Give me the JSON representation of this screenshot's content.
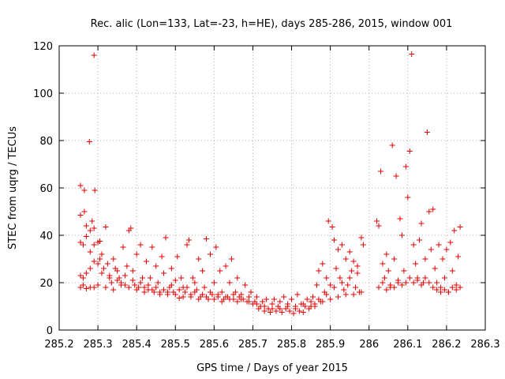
{
  "chart_data": {
    "type": "scatter",
    "title": "Rec. alic (Lon=133, Lat=-23, h=HE), days 285-286, 2015, window 001",
    "xlabel": "GPS time / Days of year 2015",
    "ylabel": "STEC from uqrg / TECUs",
    "xlim": [
      285.2,
      286.3
    ],
    "ylim": [
      0,
      120
    ],
    "xticks": [
      285.2,
      285.3,
      285.4,
      285.5,
      285.6,
      285.7,
      285.8,
      285.9,
      286.0,
      286.1,
      286.2,
      286.3
    ],
    "xtick_labels": [
      "285.2",
      "285.3",
      "285.4",
      "285.5",
      "285.6",
      "285.7",
      "285.8",
      "285.9",
      "286",
      "286.1",
      "286.2",
      "286.3"
    ],
    "yticks": [
      0,
      20,
      40,
      60,
      80,
      100,
      120
    ],
    "ytick_labels": [
      "0",
      "20",
      "40",
      "60",
      "80",
      "100",
      "120"
    ],
    "grid": true,
    "marker": "+",
    "color": "#e00000",
    "series": [
      {
        "name": "",
        "points": [
          [
            285.255,
            61
          ],
          [
            285.265,
            59
          ],
          [
            285.278,
            79.5
          ],
          [
            285.29,
            116
          ],
          [
            285.292,
            59
          ],
          [
            285.255,
            48.5
          ],
          [
            285.265,
            50
          ],
          [
            285.27,
            44
          ],
          [
            285.28,
            42
          ],
          [
            285.285,
            46
          ],
          [
            285.29,
            43
          ],
          [
            285.255,
            37
          ],
          [
            285.262,
            36
          ],
          [
            285.27,
            39.5
          ],
          [
            285.28,
            33
          ],
          [
            285.29,
            36
          ],
          [
            285.3,
            37
          ],
          [
            285.305,
            37.5
          ],
          [
            285.255,
            23
          ],
          [
            285.262,
            22
          ],
          [
            285.27,
            24
          ],
          [
            285.28,
            26
          ],
          [
            285.29,
            29
          ],
          [
            285.3,
            28
          ],
          [
            285.305,
            30
          ],
          [
            285.255,
            18
          ],
          [
            285.262,
            19
          ],
          [
            285.27,
            17.5
          ],
          [
            285.28,
            18
          ],
          [
            285.29,
            18
          ],
          [
            285.3,
            19
          ],
          [
            285.31,
            32
          ],
          [
            285.315,
            26
          ],
          [
            285.32,
            43.5
          ],
          [
            285.325,
            28
          ],
          [
            285.33,
            23
          ],
          [
            285.335,
            20
          ],
          [
            285.34,
            30
          ],
          [
            285.345,
            26
          ],
          [
            285.35,
            21
          ],
          [
            285.355,
            22
          ],
          [
            285.36,
            20
          ],
          [
            285.365,
            35
          ],
          [
            285.37,
            19
          ],
          [
            285.375,
            27
          ],
          [
            285.38,
            42
          ],
          [
            285.385,
            43
          ],
          [
            285.39,
            25
          ],
          [
            285.395,
            19
          ],
          [
            285.4,
            32
          ],
          [
            285.405,
            18
          ],
          [
            285.41,
            36
          ],
          [
            285.415,
            22
          ],
          [
            285.42,
            18
          ],
          [
            285.425,
            29
          ],
          [
            285.43,
            17
          ],
          [
            285.435,
            22
          ],
          [
            285.44,
            35
          ],
          [
            285.445,
            16
          ],
          [
            285.45,
            27
          ],
          [
            285.455,
            20
          ],
          [
            285.46,
            16
          ],
          [
            285.465,
            31
          ],
          [
            285.47,
            24
          ],
          [
            285.475,
            39
          ],
          [
            285.48,
            15
          ],
          [
            285.485,
            18
          ],
          [
            285.49,
            26
          ],
          [
            285.495,
            16
          ],
          [
            285.5,
            21
          ],
          [
            285.505,
            31
          ],
          [
            285.51,
            13.5
          ],
          [
            285.515,
            22
          ],
          [
            285.52,
            18
          ],
          [
            285.525,
            16
          ],
          [
            285.53,
            36
          ],
          [
            285.535,
            38
          ],
          [
            285.54,
            14
          ],
          [
            285.545,
            22
          ],
          [
            285.55,
            20
          ],
          [
            285.555,
            17
          ],
          [
            285.56,
            30
          ],
          [
            285.565,
            14
          ],
          [
            285.57,
            25
          ],
          [
            285.575,
            18
          ],
          [
            285.58,
            38.5
          ],
          [
            285.585,
            13
          ],
          [
            285.59,
            32
          ],
          [
            285.595,
            15
          ],
          [
            285.6,
            20
          ],
          [
            285.605,
            35
          ],
          [
            285.61,
            14
          ],
          [
            285.615,
            25
          ],
          [
            285.62,
            16
          ],
          [
            285.625,
            13
          ],
          [
            285.63,
            27
          ],
          [
            285.635,
            14
          ],
          [
            285.64,
            20
          ],
          [
            285.645,
            30
          ],
          [
            285.65,
            15
          ],
          [
            285.655,
            16
          ],
          [
            285.66,
            22
          ],
          [
            285.665,
            14
          ],
          [
            285.67,
            15
          ],
          [
            285.675,
            13
          ],
          [
            285.68,
            19
          ],
          [
            285.685,
            12
          ],
          [
            285.69,
            14
          ],
          [
            285.695,
            16
          ],
          [
            285.7,
            11
          ],
          [
            285.705,
            12
          ],
          [
            285.71,
            14
          ],
          [
            285.715,
            9
          ],
          [
            285.72,
            10
          ],
          [
            285.725,
            12
          ],
          [
            285.73,
            8
          ],
          [
            285.735,
            13
          ],
          [
            285.74,
            9
          ],
          [
            285.745,
            7.5
          ],
          [
            285.75,
            11
          ],
          [
            285.755,
            13
          ],
          [
            285.76,
            8
          ],
          [
            285.765,
            10
          ],
          [
            285.77,
            12
          ],
          [
            285.775,
            7.5
          ],
          [
            285.78,
            14
          ],
          [
            285.785,
            9
          ],
          [
            285.79,
            11
          ],
          [
            285.795,
            8
          ],
          [
            285.8,
            13
          ],
          [
            285.805,
            7
          ],
          [
            285.81,
            9
          ],
          [
            285.815,
            15
          ],
          [
            285.82,
            8
          ],
          [
            285.825,
            11
          ],
          [
            285.83,
            7.5
          ],
          [
            285.835,
            10
          ],
          [
            285.84,
            13
          ],
          [
            285.845,
            9
          ],
          [
            285.85,
            12
          ],
          [
            285.855,
            14
          ],
          [
            285.86,
            10
          ],
          [
            285.865,
            19
          ],
          [
            285.87,
            25
          ],
          [
            285.875,
            12
          ],
          [
            285.88,
            28
          ],
          [
            285.885,
            16
          ],
          [
            285.89,
            22
          ],
          [
            285.895,
            46
          ],
          [
            285.9,
            19
          ],
          [
            285.905,
            43.5
          ],
          [
            285.91,
            38
          ],
          [
            285.915,
            26
          ],
          [
            285.92,
            34
          ],
          [
            285.925,
            22
          ],
          [
            285.93,
            36
          ],
          [
            285.935,
            17
          ],
          [
            285.94,
            30
          ],
          [
            285.945,
            19
          ],
          [
            285.95,
            33
          ],
          [
            285.955,
            25
          ],
          [
            285.96,
            29
          ],
          [
            285.965,
            18
          ],
          [
            285.97,
            27
          ],
          [
            285.975,
            16
          ],
          [
            285.98,
            39
          ],
          [
            285.985,
            36
          ],
          [
            286.02,
            46
          ],
          [
            286.025,
            44
          ],
          [
            286.03,
            67
          ],
          [
            286.035,
            28
          ],
          [
            286.04,
            22
          ],
          [
            286.045,
            32
          ],
          [
            286.05,
            25
          ],
          [
            286.055,
            18
          ],
          [
            286.06,
            78
          ],
          [
            286.065,
            30
          ],
          [
            286.07,
            65
          ],
          [
            286.075,
            20
          ],
          [
            286.08,
            47
          ],
          [
            286.085,
            40
          ],
          [
            286.09,
            25
          ],
          [
            286.095,
            69
          ],
          [
            286.1,
            56
          ],
          [
            286.105,
            75.5
          ],
          [
            286.11,
            116.5
          ],
          [
            286.115,
            36
          ],
          [
            286.12,
            28
          ],
          [
            286.125,
            22
          ],
          [
            286.13,
            38
          ],
          [
            286.135,
            45
          ],
          [
            286.14,
            20
          ],
          [
            286.145,
            30
          ],
          [
            286.15,
            83.5
          ],
          [
            286.155,
            50
          ],
          [
            286.16,
            34
          ],
          [
            286.165,
            51
          ],
          [
            286.17,
            26
          ],
          [
            286.175,
            20
          ],
          [
            286.18,
            36
          ],
          [
            286.185,
            18
          ],
          [
            286.19,
            30
          ],
          [
            286.195,
            22
          ],
          [
            286.2,
            34
          ],
          [
            286.205,
            16
          ],
          [
            286.21,
            37
          ],
          [
            286.215,
            25
          ],
          [
            286.22,
            42
          ],
          [
            286.225,
            19
          ],
          [
            286.23,
            31
          ],
          [
            286.235,
            43.5
          ],
          [
            286.025,
            18
          ],
          [
            286.035,
            20
          ],
          [
            286.045,
            17
          ],
          [
            286.055,
            19
          ],
          [
            286.065,
            18
          ],
          [
            286.075,
            21
          ],
          [
            286.085,
            19
          ],
          [
            286.095,
            20
          ],
          [
            286.105,
            22
          ],
          [
            286.115,
            20
          ],
          [
            286.125,
            21
          ],
          [
            286.135,
            19
          ],
          [
            286.145,
            22
          ],
          [
            286.155,
            20
          ],
          [
            286.165,
            18
          ],
          [
            286.175,
            17
          ],
          [
            286.185,
            16
          ],
          [
            286.195,
            17
          ],
          [
            286.205,
            16
          ],
          [
            286.215,
            18
          ],
          [
            286.225,
            17
          ],
          [
            286.235,
            18
          ],
          [
            285.32,
            18
          ],
          [
            285.34,
            17
          ],
          [
            285.36,
            19
          ],
          [
            285.38,
            18
          ],
          [
            285.4,
            17
          ],
          [
            285.42,
            16
          ],
          [
            285.44,
            17
          ],
          [
            285.46,
            15
          ],
          [
            285.48,
            16
          ],
          [
            285.5,
            15
          ],
          [
            285.52,
            14
          ],
          [
            285.54,
            15
          ],
          [
            285.56,
            13
          ],
          [
            285.58,
            14
          ],
          [
            285.6,
            13
          ],
          [
            285.62,
            12
          ],
          [
            285.64,
            13
          ],
          [
            285.66,
            12
          ],
          [
            285.86,
            11
          ],
          [
            285.88,
            12
          ],
          [
            285.9,
            13
          ],
          [
            285.92,
            14
          ],
          [
            285.94,
            15
          ],
          [
            285.96,
            15
          ],
          [
            285.98,
            16
          ],
          [
            285.31,
            24
          ],
          [
            285.33,
            22
          ],
          [
            285.35,
            25
          ],
          [
            285.37,
            23
          ],
          [
            285.39,
            21
          ],
          [
            285.41,
            20
          ],
          [
            285.43,
            19
          ],
          [
            285.45,
            18
          ],
          [
            285.47,
            17
          ],
          [
            285.49,
            19
          ],
          [
            285.51,
            17
          ],
          [
            285.53,
            18
          ],
          [
            285.55,
            16
          ],
          [
            285.57,
            15
          ],
          [
            285.59,
            16
          ],
          [
            285.61,
            15
          ],
          [
            285.63,
            14
          ],
          [
            285.65,
            13
          ],
          [
            285.67,
            13
          ],
          [
            285.69,
            12
          ],
          [
            285.71,
            11
          ],
          [
            285.73,
            10
          ],
          [
            285.75,
            9
          ],
          [
            285.77,
            9
          ],
          [
            285.79,
            10
          ],
          [
            285.81,
            10
          ],
          [
            285.83,
            11
          ],
          [
            285.85,
            10
          ],
          [
            285.87,
            13
          ],
          [
            285.89,
            15
          ],
          [
            285.91,
            18
          ],
          [
            285.93,
            20
          ],
          [
            285.95,
            22
          ],
          [
            285.97,
            24
          ]
        ]
      }
    ]
  }
}
